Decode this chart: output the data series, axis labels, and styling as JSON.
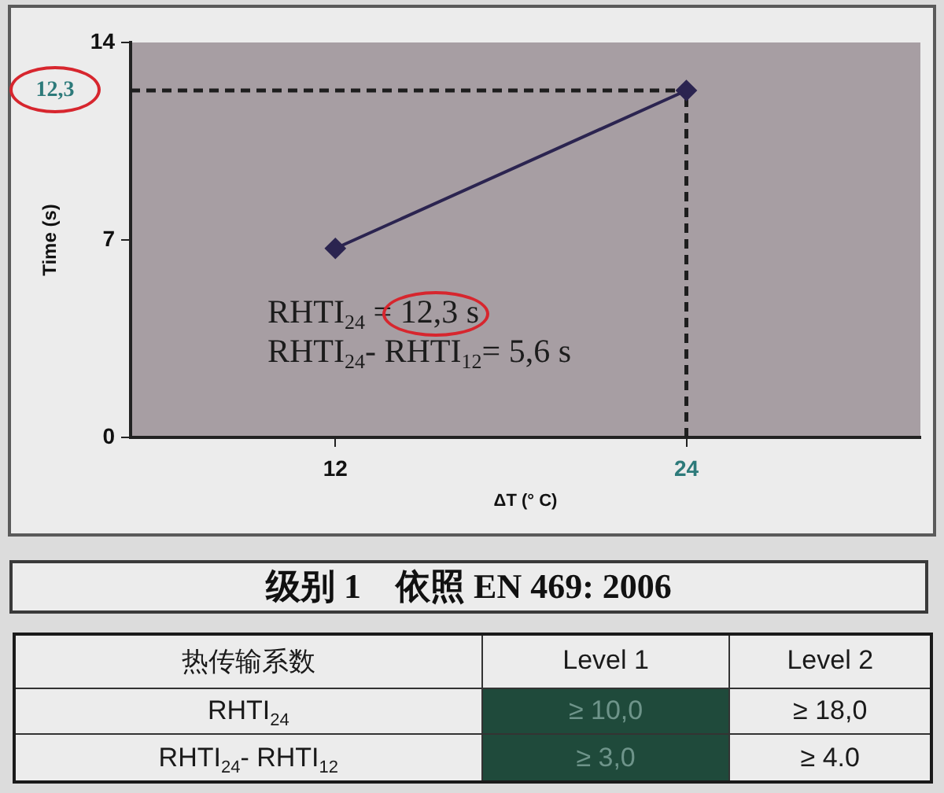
{
  "chart_data": [
    {
      "type": "line",
      "xlabel": "ΔT (° C)",
      "ylabel": "Time (s)",
      "x": [
        12,
        24
      ],
      "series": [
        {
          "color": "#2b2450",
          "values": [
            6.7,
            12.3
          ]
        }
      ],
      "xlim": [
        5,
        32
      ],
      "xticks": [
        12,
        24
      ],
      "ylim": [
        0,
        14
      ],
      "yticks": [
        0,
        7,
        14
      ],
      "grid": false,
      "legend": false,
      "marker": "diamond",
      "ref_lines": [
        {
          "axis": "y",
          "value": 12.3,
          "label": "12,3",
          "line_style": "dashed",
          "color": "#1e1e1e"
        },
        {
          "axis": "x",
          "value": 24,
          "line_style": "dashed",
          "color": "#1e1e1e"
        }
      ],
      "annotations": [
        "RHTI$_{24}$ = 12,3 s",
        "RHTI$_{24}$- RHTI$_{12}$= 5,6 s"
      ]
    },
    {
      "type": "other",
      "title": "级别 1    依照 EN 469: 2006",
      "categories": [
        "热传输系数",
        "Level 1",
        "Level 2"
      ],
      "y_categories": [
        "RHTI$_{24}$",
        "RHTI$_{24}$- RHTI$_{12}$"
      ],
      "cell_labels": [
        [
          "≥ 10,0",
          "≥ 18,0"
        ],
        [
          "≥ 3,0",
          "≥ 4.0"
        ]
      ]
    }
  ]
}
